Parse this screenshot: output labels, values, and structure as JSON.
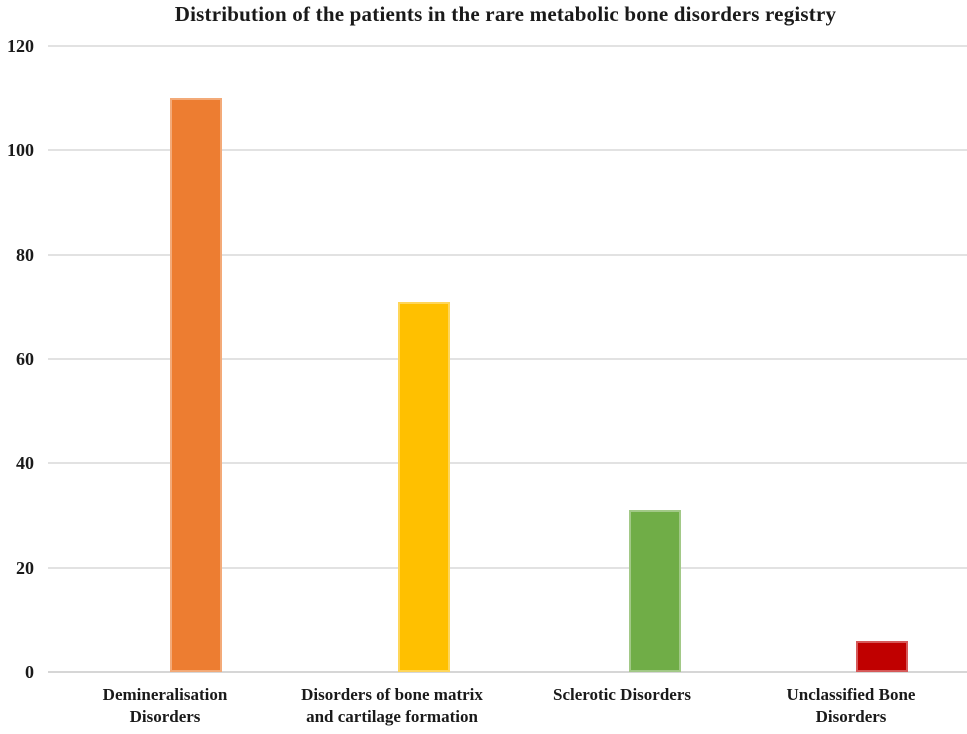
{
  "chart_data": {
    "type": "bar",
    "title": "Distribution of the patients in the rare metabolic bone disorders registry",
    "categories": [
      "Demineralisation Disorders",
      "Disorders of bone matrix and cartilage formation",
      "Sclerotic Disorders",
      "Unclassified Bone Disorders"
    ],
    "category_label_lines": [
      [
        "Demineralisation",
        "Disorders"
      ],
      [
        "Disorders of bone matrix",
        "and cartilage formation"
      ],
      [
        "Sclerotic Disorders"
      ],
      [
        "Unclassified Bone",
        "Disorders"
      ]
    ],
    "values": [
      110,
      71,
      31,
      6
    ],
    "bar_colors": [
      "#ED7D31",
      "#FFC000",
      "#70AD47",
      "#C00000"
    ],
    "xlabel": "",
    "ylabel": "",
    "ylim": [
      0,
      120
    ],
    "yticks": [
      0,
      20,
      40,
      60,
      80,
      100,
      120
    ],
    "grid": "horizontal",
    "legend": "none",
    "colors": {
      "background": "#FFFFFF",
      "gridline": "#E2E2E2",
      "axis_line": "#D6D6D6",
      "text": "#1A1A1A"
    }
  }
}
